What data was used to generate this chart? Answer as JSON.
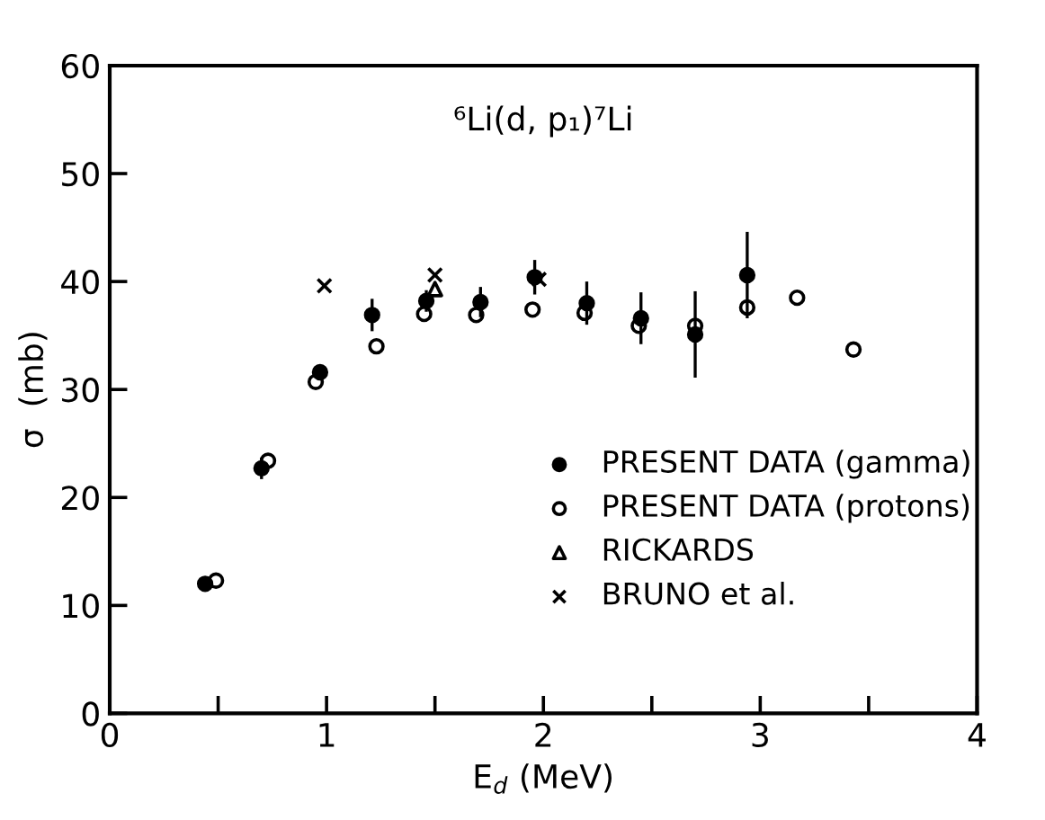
{
  "chart_data": {
    "type": "scatter",
    "title": "⁶Li(d, p₁)⁷Li",
    "xlabel": "E$_{d}$ (MeV)",
    "ylabel": "σ  (mb)",
    "xlim": [
      0,
      4
    ],
    "ylim": [
      0,
      60
    ],
    "xticks": [
      0,
      {
        "value": 0.5,
        "label": null
      },
      1,
      {
        "value": 1.5,
        "label": null
      },
      2,
      {
        "value": 2.5,
        "label": null
      },
      3,
      {
        "value": 3.5,
        "label": null
      },
      4
    ],
    "yticks": [
      0,
      10,
      20,
      30,
      40,
      50,
      60
    ],
    "grid": false,
    "legend": "bottom right",
    "series": [
      {
        "name": "PRESENT DATA (gamma)",
        "color": "#000000",
        "marker": "circle",
        "x": [
          0.44,
          0.7,
          0.97,
          1.21,
          1.46,
          1.71,
          1.96,
          2.2,
          2.45,
          2.7,
          2.94
        ],
        "values": [
          12.0,
          22.7,
          31.6,
          36.9,
          38.2,
          38.1,
          40.4,
          38.0,
          36.6,
          35.1,
          40.6
        ],
        "errors": [
          null,
          1.0,
          null,
          1.5,
          1.0,
          1.4,
          1.6,
          2.0,
          2.4,
          4.0,
          4.0
        ]
      },
      {
        "name": "PRESENT DATA (protons)",
        "color": "#000000",
        "marker": "circle",
        "x": [
          0.49,
          0.73,
          0.95,
          1.23,
          1.45,
          1.69,
          1.95,
          2.19,
          2.44,
          2.7,
          2.94,
          3.17,
          3.43
        ],
        "values": [
          12.3,
          23.4,
          30.7,
          34.0,
          37.0,
          36.9,
          37.4,
          37.1,
          35.9,
          35.9,
          37.6,
          38.5,
          33.7
        ]
      },
      {
        "name": "RICKARDS",
        "color": "#000000",
        "marker": "triangle",
        "x": [
          1.5
        ],
        "values": [
          39.3
        ]
      },
      {
        "name": "BRUNO et al.",
        "color": "#000000",
        "marker": "cross",
        "x": [
          0.99,
          1.5,
          1.98
        ],
        "values": [
          39.6,
          40.6,
          40.2
        ]
      }
    ]
  }
}
